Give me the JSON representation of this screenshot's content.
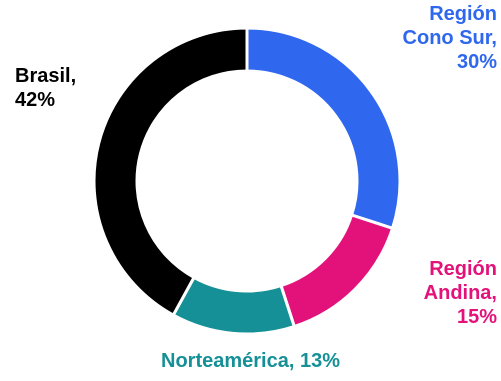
{
  "chart_data": {
    "type": "pie",
    "donut": true,
    "slices": [
      {
        "label": "Región Cono Sur, 30%",
        "text": "Región\nCono Sur,\n30%",
        "value": 30,
        "color": "#2f67ee"
      },
      {
        "label": "Región Andina, 15%",
        "text": "Región\nAndina,\n15%",
        "value": 15,
        "color": "#e3127a"
      },
      {
        "label": "Norteamérica, 13%",
        "text": "Norteamérica, 13%",
        "value": 13,
        "color": "#159097"
      },
      {
        "label": "Brasil, 42%",
        "text": "Brasil,\n42%",
        "value": 42,
        "color": "#000000"
      }
    ],
    "legend": "none",
    "start_angle_deg": 0,
    "direction": "clockwise"
  }
}
